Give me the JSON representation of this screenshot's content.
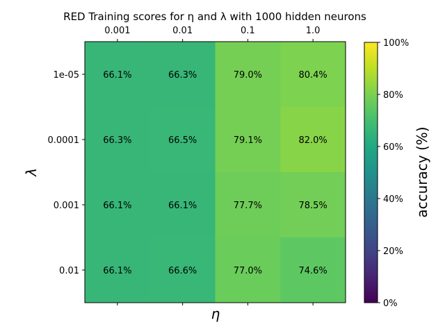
{
  "chart_data": {
    "type": "heatmap",
    "title": "RED Training scores for η and λ with 1000 hidden neurons",
    "xlabel": "η",
    "ylabel": "λ",
    "x_ticks_position": "top",
    "x_categories": [
      "0.001",
      "0.01",
      "0.1",
      "1.0"
    ],
    "y_categories": [
      "1e-05",
      "0.0001",
      "0.001",
      "0.01"
    ],
    "values": [
      [
        66.1,
        66.3,
        79.0,
        80.4
      ],
      [
        66.3,
        66.5,
        79.1,
        82.0
      ],
      [
        66.1,
        66.1,
        77.7,
        78.5
      ],
      [
        66.1,
        66.6,
        77.0,
        74.6
      ]
    ],
    "cell_labels": [
      [
        "66.1%",
        "66.3%",
        "79.0%",
        "80.4%"
      ],
      [
        "66.3%",
        "66.5%",
        "79.1%",
        "82.0%"
      ],
      [
        "66.1%",
        "66.1%",
        "77.7%",
        "78.5%"
      ],
      [
        "66.1%",
        "66.6%",
        "77.0%",
        "74.6%"
      ]
    ],
    "colorbar": {
      "label": "accuracy (%)",
      "range": [
        0,
        100
      ],
      "ticks": [
        "0%",
        "20%",
        "40%",
        "60%",
        "80%",
        "100%"
      ],
      "colormap": "viridis",
      "position": "right"
    },
    "grid": false
  }
}
